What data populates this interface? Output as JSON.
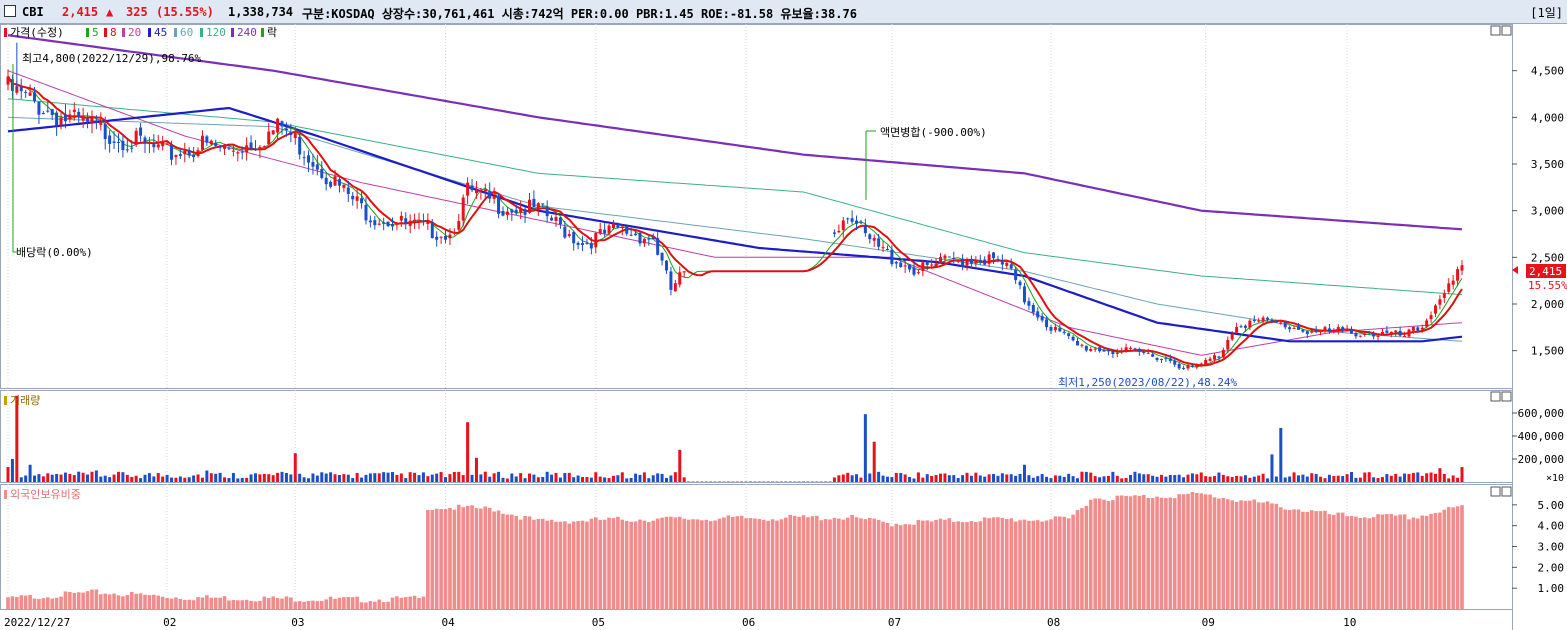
{
  "header": {
    "ticker": "CBI",
    "price": "2,415",
    "change_arrow": "▲",
    "change": "325",
    "change_pct": "(15.55%)",
    "volume": "1,338,734",
    "info": "구분:KOSDAQ 상장수:30,761,461 시총:742억 PER:0.00 PBR:1.45 ROE:-81.58 유보율:38.76",
    "period": "[1일]"
  },
  "colors": {
    "up": "#e8111c",
    "down": "#1b4fc9",
    "ma5": "#1aa51a",
    "ma8": "#e01010",
    "ma20": "#c13fa6",
    "ma45": "#1c1cc8",
    "ma60": "#6aa3b8",
    "ma120": "#3caf8a",
    "ma240": "#7b2fb8",
    "foreign": "#f08c8c"
  },
  "price_legend": {
    "price": "가격(수정)",
    "ma5": "5",
    "ma8": "8",
    "ma20": "20",
    "ma45": "45",
    "ma60": "60",
    "ma120": "120",
    "ma240": "240",
    "rak": "락"
  },
  "price_axis": {
    "ticks": [
      "4,500",
      "4,000",
      "3,500",
      "3,000",
      "2,500",
      "2,000",
      "1,500"
    ]
  },
  "volume_axis": {
    "ticks": [
      "600,000",
      "400,000",
      "200,000"
    ],
    "unit": "×10"
  },
  "foreign_axis": {
    "ticks": [
      "5.00",
      "4.00",
      "3.00",
      "2.00",
      "1.00"
    ]
  },
  "x_axis": {
    "ticks": [
      "2022/12/27",
      "02",
      "03",
      "04",
      "05",
      "06",
      "07",
      "08",
      "09",
      "10"
    ]
  },
  "annotations": {
    "high": "최고4,800(2022/12/29),98.76%",
    "low": "최저1,250(2023/08/22),48.24%",
    "dividend": "배당락(0.00%)",
    "reverse_split": "액면병합(-900.00%)"
  },
  "last_price_tag": {
    "price": "2,415",
    "pct": "15.55%"
  },
  "volume_panel": {
    "label": "거래량"
  },
  "foreign_panel": {
    "label": "외국인보유비중"
  },
  "chart_data": {
    "type": "candlestick",
    "x_range": [
      "2022/12/27",
      "2023/10/16"
    ],
    "price_ylim": [
      1100,
      5000
    ],
    "volume_ylim": [
      0,
      800000
    ],
    "foreign_ylim": [
      0,
      6
    ],
    "last_close": 2415,
    "high": {
      "value": 4800,
      "date": "2022/12/29"
    },
    "low": {
      "value": 1250,
      "date": "2023/08/22"
    },
    "close_anchors": [
      {
        "d": 0,
        "v": 4300
      },
      {
        "d": 12,
        "v": 4000
      },
      {
        "d": 25,
        "v": 3800
      },
      {
        "d": 36,
        "v": 3600
      },
      {
        "d": 44,
        "v": 3700
      },
      {
        "d": 50,
        "v": 3650
      },
      {
        "d": 56,
        "v": 3750
      },
      {
        "d": 62,
        "v": 3900
      },
      {
        "d": 70,
        "v": 3500
      },
      {
        "d": 76,
        "v": 3200
      },
      {
        "d": 82,
        "v": 2950
      },
      {
        "d": 90,
        "v": 2850
      },
      {
        "d": 100,
        "v": 2750
      },
      {
        "d": 104,
        "v": 3200
      },
      {
        "d": 112,
        "v": 3050
      },
      {
        "d": 120,
        "v": 3000
      },
      {
        "d": 130,
        "v": 2650
      },
      {
        "d": 138,
        "v": 2800
      },
      {
        "d": 146,
        "v": 2700
      },
      {
        "d": 150,
        "v": 2150
      },
      {
        "d": 153,
        "v": 2350
      },
      {
        "d": 170,
        "v": 2350
      },
      {
        "d": 180,
        "v": 2350
      },
      {
        "d": 190,
        "v": 3000
      },
      {
        "d": 194,
        "v": 2700
      },
      {
        "d": 200,
        "v": 2500
      },
      {
        "d": 206,
        "v": 2350
      },
      {
        "d": 212,
        "v": 2450
      },
      {
        "d": 220,
        "v": 2500
      },
      {
        "d": 226,
        "v": 2400
      },
      {
        "d": 230,
        "v": 2050
      },
      {
        "d": 236,
        "v": 1750
      },
      {
        "d": 242,
        "v": 1550
      },
      {
        "d": 250,
        "v": 1500
      },
      {
        "d": 260,
        "v": 1450
      },
      {
        "d": 268,
        "v": 1300
      },
      {
        "d": 274,
        "v": 1450
      },
      {
        "d": 278,
        "v": 1800
      },
      {
        "d": 286,
        "v": 1800
      },
      {
        "d": 296,
        "v": 1700
      },
      {
        "d": 306,
        "v": 1700
      },
      {
        "d": 316,
        "v": 1650
      },
      {
        "d": 320,
        "v": 1750
      },
      {
        "d": 324,
        "v": 2100
      },
      {
        "d": 327,
        "v": 2200
      },
      {
        "d": 329,
        "v": 2415
      }
    ],
    "ma_anchors": {
      "ma240": [
        {
          "d": 0,
          "v": 4880
        },
        {
          "d": 60,
          "v": 4500
        },
        {
          "d": 120,
          "v": 4000
        },
        {
          "d": 180,
          "v": 3600
        },
        {
          "d": 230,
          "v": 3400
        },
        {
          "d": 270,
          "v": 3000
        },
        {
          "d": 329,
          "v": 2800
        }
      ],
      "ma120": [
        {
          "d": 0,
          "v": 4200
        },
        {
          "d": 60,
          "v": 3950
        },
        {
          "d": 120,
          "v": 3400
        },
        {
          "d": 180,
          "v": 3200
        },
        {
          "d": 230,
          "v": 2550
        },
        {
          "d": 270,
          "v": 2300
        },
        {
          "d": 329,
          "v": 2100
        }
      ],
      "ma60": [
        {
          "d": 0,
          "v": 4000
        },
        {
          "d": 60,
          "v": 3900
        },
        {
          "d": 120,
          "v": 3050
        },
        {
          "d": 180,
          "v": 2700
        },
        {
          "d": 230,
          "v": 2350
        },
        {
          "d": 260,
          "v": 2000
        },
        {
          "d": 300,
          "v": 1700
        },
        {
          "d": 329,
          "v": 1600
        }
      ],
      "ma45": [
        {
          "d": 0,
          "v": 3850
        },
        {
          "d": 50,
          "v": 4100
        },
        {
          "d": 70,
          "v": 3800
        },
        {
          "d": 120,
          "v": 3000
        },
        {
          "d": 170,
          "v": 2600
        },
        {
          "d": 210,
          "v": 2450
        },
        {
          "d": 230,
          "v": 2300
        },
        {
          "d": 260,
          "v": 1800
        },
        {
          "d": 290,
          "v": 1600
        },
        {
          "d": 320,
          "v": 1600
        },
        {
          "d": 329,
          "v": 1650
        }
      ],
      "ma20": [
        {
          "d": 0,
          "v": 4500
        },
        {
          "d": 40,
          "v": 3800
        },
        {
          "d": 80,
          "v": 3300
        },
        {
          "d": 120,
          "v": 2900
        },
        {
          "d": 160,
          "v": 2500
        },
        {
          "d": 200,
          "v": 2500
        },
        {
          "d": 240,
          "v": 1750
        },
        {
          "d": 270,
          "v": 1450
        },
        {
          "d": 300,
          "v": 1700
        },
        {
          "d": 329,
          "v": 1800
        }
      ]
    },
    "volume_series": [
      {
        "d": 0,
        "v": 130000
      },
      {
        "d": 1,
        "v": 200000
      },
      {
        "d": 2,
        "v": 750000
      },
      {
        "d": 5,
        "v": 150000
      },
      {
        "d": 20,
        "v": 100000
      },
      {
        "d": 45,
        "v": 100000
      },
      {
        "d": 65,
        "v": 250000
      },
      {
        "d": 104,
        "v": 520000
      },
      {
        "d": 106,
        "v": 210000
      },
      {
        "d": 152,
        "v": 280000
      },
      {
        "d": 155,
        "v": 250000
      },
      {
        "d": 194,
        "v": 590000
      },
      {
        "d": 196,
        "v": 350000
      },
      {
        "d": 230,
        "v": 150000
      },
      {
        "d": 286,
        "v": 240000
      },
      {
        "d": 288,
        "v": 470000
      },
      {
        "d": 324,
        "v": 120000
      },
      {
        "d": 329,
        "v": 130000
      }
    ],
    "foreign_series": [
      {
        "d": 0,
        "v": 0.5
      },
      {
        "d": 20,
        "v": 0.8
      },
      {
        "d": 40,
        "v": 0.55
      },
      {
        "d": 80,
        "v": 0.45
      },
      {
        "d": 94,
        "v": 0.5
      },
      {
        "d": 95,
        "v": 4.9
      },
      {
        "d": 110,
        "v": 4.8
      },
      {
        "d": 120,
        "v": 4.2
      },
      {
        "d": 140,
        "v": 4.3
      },
      {
        "d": 190,
        "v": 4.4
      },
      {
        "d": 200,
        "v": 4.1
      },
      {
        "d": 220,
        "v": 4.3
      },
      {
        "d": 240,
        "v": 4.3
      },
      {
        "d": 245,
        "v": 5.3
      },
      {
        "d": 270,
        "v": 5.5
      },
      {
        "d": 286,
        "v": 5.0
      },
      {
        "d": 300,
        "v": 4.5
      },
      {
        "d": 318,
        "v": 4.4
      },
      {
        "d": 329,
        "v": 4.9
      }
    ],
    "x_tick_days": [
      0,
      36,
      65,
      99,
      133,
      167,
      200,
      236,
      271,
      303
    ]
  }
}
